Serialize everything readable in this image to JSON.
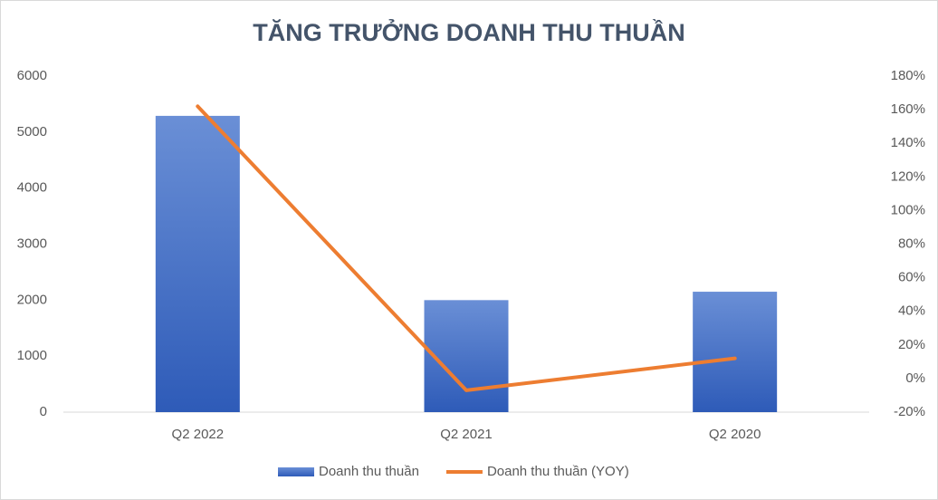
{
  "chart_data": {
    "type": "bar",
    "title": "TĂNG TRƯỞNG DOANH THU THUẦN",
    "categories": [
      "Q2 2022",
      "Q2 2021",
      "Q2 2020"
    ],
    "series": [
      {
        "name": "Doanh thu thuần",
        "type": "bar",
        "color": "#4472c4",
        "values": [
          5290,
          2000,
          2150
        ]
      },
      {
        "name": "Doanh thu thuần (YOY)",
        "type": "line",
        "color": "#ed7d31",
        "axis": "y2",
        "values": [
          162,
          -7,
          12
        ]
      }
    ],
    "ylim": [
      0,
      6000
    ],
    "yticks": [
      0,
      1000,
      2000,
      3000,
      4000,
      5000,
      6000
    ],
    "y2lim": [
      -20,
      180
    ],
    "y2ticks": [
      {
        "value": -20,
        "label": "-20%"
      },
      {
        "value": 0,
        "label": "0%"
      },
      {
        "value": 20,
        "label": "20%"
      },
      {
        "value": 40,
        "label": "40%"
      },
      {
        "value": 60,
        "label": "60%"
      },
      {
        "value": 80,
        "label": "80%"
      },
      {
        "value": 100,
        "label": "100%"
      },
      {
        "value": 120,
        "label": "120%"
      },
      {
        "value": 140,
        "label": "140%"
      },
      {
        "value": 160,
        "label": "160%"
      },
      {
        "value": 180,
        "label": "180%"
      }
    ],
    "grid": false,
    "legend": "bottom"
  }
}
